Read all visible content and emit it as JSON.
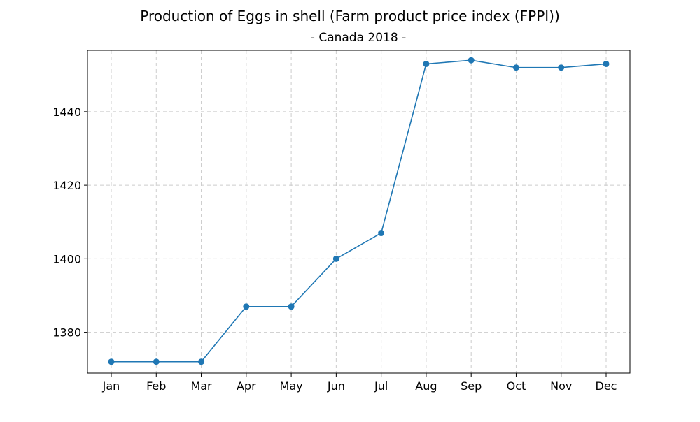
{
  "chart_data": {
    "type": "line",
    "title": "Production of Eggs in shell (Farm product price index (FPPI))",
    "subtitle": "- Canada 2018 -",
    "xlabel": "",
    "ylabel": "",
    "categories": [
      "Jan",
      "Feb",
      "Mar",
      "Apr",
      "May",
      "Jun",
      "Jul",
      "Aug",
      "Sep",
      "Oct",
      "Nov",
      "Dec"
    ],
    "series": [
      {
        "values": [
          1372,
          1372,
          1372,
          1387,
          1387,
          1400,
          1407,
          1453,
          1454,
          1452,
          1452,
          1453
        ],
        "color": "#1f77b4"
      }
    ],
    "yticks": [
      1380,
      1400,
      1420,
      1440
    ],
    "ylim": [
      1368.9,
      1456.7
    ],
    "grid": true,
    "grid_color": "#cccccc",
    "legend": "none"
  }
}
